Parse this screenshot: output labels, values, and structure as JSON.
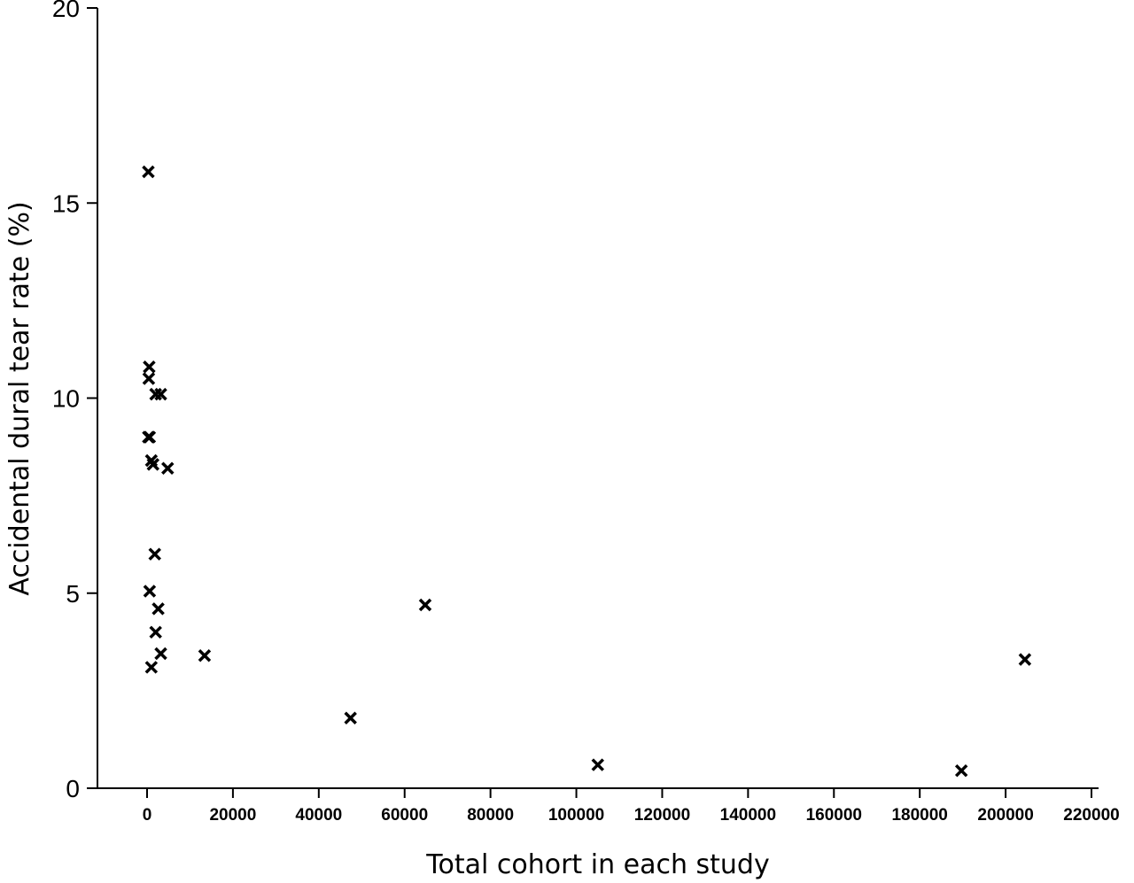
{
  "chart_data": {
    "type": "scatter",
    "title": "",
    "xlabel": "Total cohort in each study",
    "ylabel": "Accidental dural tear rate (%)",
    "xlim": [
      -12000,
      220000
    ],
    "ylim": [
      0,
      20
    ],
    "x_ticks": [
      "0",
      "20000",
      "40000",
      "60000",
      "80000",
      "100000",
      "120000",
      "140000",
      "160000",
      "180000",
      "200000",
      "220000"
    ],
    "y_ticks": [
      "0",
      "5",
      "10",
      "15",
      "20"
    ],
    "grid": false,
    "marker": "x",
    "series": [
      {
        "points": [
          {
            "x": 300,
            "y": 15.8
          },
          {
            "x": 500,
            "y": 10.8
          },
          {
            "x": 400,
            "y": 10.5
          },
          {
            "x": 2000,
            "y": 10.1
          },
          {
            "x": 3200,
            "y": 10.1
          },
          {
            "x": 300,
            "y": 9.0
          },
          {
            "x": 600,
            "y": 9.0
          },
          {
            "x": 1000,
            "y": 8.4
          },
          {
            "x": 1400,
            "y": 8.3
          },
          {
            "x": 4800,
            "y": 8.2
          },
          {
            "x": 1800,
            "y": 6.0
          },
          {
            "x": 600,
            "y": 5.05
          },
          {
            "x": 2600,
            "y": 4.6
          },
          {
            "x": 2000,
            "y": 4.0
          },
          {
            "x": 3200,
            "y": 3.45
          },
          {
            "x": 1000,
            "y": 3.1
          },
          {
            "x": 13400,
            "y": 3.4
          },
          {
            "x": 47400,
            "y": 1.8
          },
          {
            "x": 64800,
            "y": 4.7
          },
          {
            "x": 105000,
            "y": 0.6
          },
          {
            "x": 189700,
            "y": 0.45
          },
          {
            "x": 204500,
            "y": 3.3
          }
        ]
      }
    ]
  }
}
